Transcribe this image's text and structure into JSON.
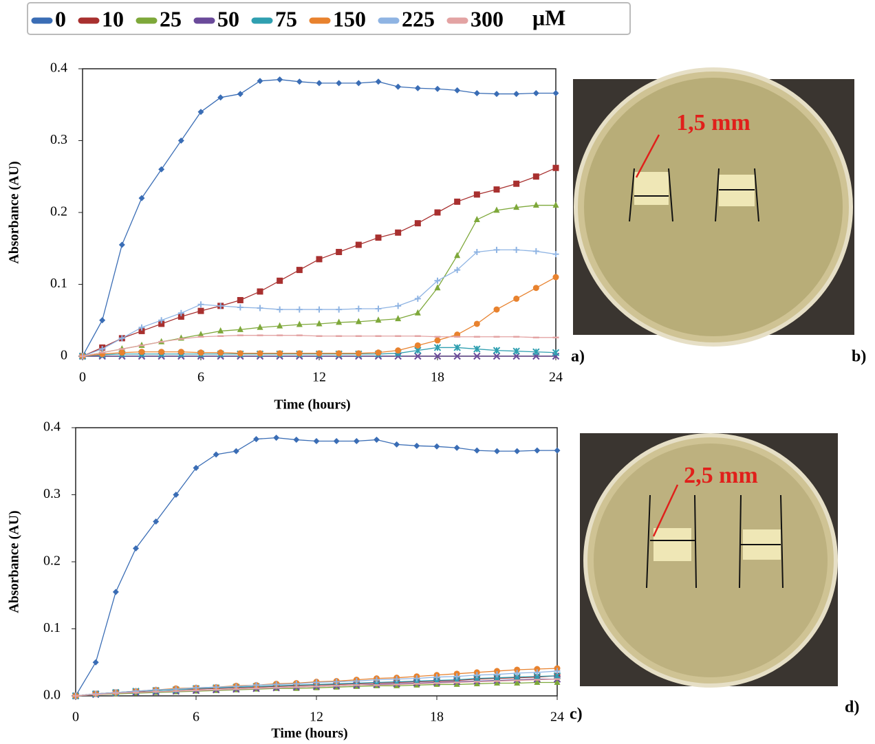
{
  "legend_unit": "μM",
  "panels": [
    "a)",
    "b)",
    "c)",
    "d)"
  ],
  "photos": [
    {
      "annotation": "1,5 mm"
    },
    {
      "annotation": "2,5 mm"
    }
  ],
  "chart_data": [
    {
      "type": "line",
      "x_label": "Time (hours)",
      "y_label": "Absorbance (AU)",
      "xlim": [
        0,
        24
      ],
      "ylim": [
        0,
        0.4
      ],
      "xticks": [
        0,
        6,
        12,
        18,
        24
      ],
      "yticks": [
        0,
        0.1,
        0.2,
        0.3,
        0.4
      ],
      "x": [
        0,
        1,
        2,
        3,
        4,
        5,
        6,
        7,
        8,
        9,
        10,
        11,
        12,
        13,
        14,
        15,
        16,
        17,
        18,
        19,
        20,
        21,
        22,
        23,
        24
      ],
      "series": [
        {
          "name": "0",
          "color": "#3a6db5",
          "marker": "diamond",
          "values": [
            0,
            0.05,
            0.155,
            0.22,
            0.26,
            0.3,
            0.34,
            0.36,
            0.365,
            0.383,
            0.385,
            0.382,
            0.38,
            0.38,
            0.38,
            0.382,
            0.375,
            0.373,
            0.372,
            0.37,
            0.366,
            0.365,
            0.365,
            0.366,
            0.366
          ]
        },
        {
          "name": "10",
          "color": "#a8302f",
          "marker": "square",
          "values": [
            0,
            0.012,
            0.025,
            0.035,
            0.045,
            0.055,
            0.063,
            0.07,
            0.078,
            0.09,
            0.105,
            0.12,
            0.135,
            0.145,
            0.155,
            0.165,
            0.172,
            0.185,
            0.2,
            0.215,
            0.225,
            0.232,
            0.24,
            0.25,
            0.262
          ]
        },
        {
          "name": "25",
          "color": "#7ea83a",
          "marker": "triangle",
          "values": [
            0,
            0.005,
            0.01,
            0.015,
            0.02,
            0.025,
            0.03,
            0.035,
            0.037,
            0.04,
            0.042,
            0.044,
            0.045,
            0.047,
            0.048,
            0.05,
            0.052,
            0.06,
            0.095,
            0.14,
            0.19,
            0.203,
            0.207,
            0.21,
            0.21
          ]
        },
        {
          "name": "50",
          "color": "#6a4a9a",
          "marker": "x",
          "values": [
            0,
            0,
            0,
            0,
            0,
            0,
            0,
            0,
            0,
            0,
            0,
            0,
            0,
            0,
            0,
            0,
            0,
            0,
            0,
            0,
            0,
            0,
            0,
            0,
            0
          ]
        },
        {
          "name": "75",
          "color": "#2f9fb0",
          "marker": "star",
          "values": [
            0,
            0.002,
            0.003,
            0.003,
            0.003,
            0.003,
            0.003,
            0.003,
            0.003,
            0.003,
            0.003,
            0.003,
            0.003,
            0.003,
            0.003,
            0.003,
            0.004,
            0.008,
            0.012,
            0.012,
            0.01,
            0.008,
            0.007,
            0.006,
            0.005
          ]
        },
        {
          "name": "150",
          "color": "#e8822e",
          "marker": "circle",
          "values": [
            0,
            0.003,
            0.005,
            0.006,
            0.006,
            0.006,
            0.005,
            0.005,
            0.004,
            0.004,
            0.004,
            0.004,
            0.004,
            0.004,
            0.004,
            0.005,
            0.008,
            0.015,
            0.022,
            0.03,
            0.045,
            0.065,
            0.08,
            0.095,
            0.11
          ]
        },
        {
          "name": "225",
          "color": "#8fb4e3",
          "marker": "plus",
          "values": [
            0,
            0.01,
            0.025,
            0.04,
            0.05,
            0.06,
            0.072,
            0.07,
            0.068,
            0.067,
            0.065,
            0.065,
            0.065,
            0.065,
            0.066,
            0.066,
            0.07,
            0.08,
            0.105,
            0.12,
            0.145,
            0.148,
            0.148,
            0.146,
            0.142
          ]
        },
        {
          "name": "300",
          "color": "#e3a3a3",
          "marker": "dash",
          "values": [
            0,
            0.005,
            0.01,
            0.015,
            0.02,
            0.024,
            0.027,
            0.028,
            0.029,
            0.029,
            0.029,
            0.029,
            0.028,
            0.028,
            0.028,
            0.028,
            0.028,
            0.028,
            0.027,
            0.027,
            0.027,
            0.027,
            0.027,
            0.026,
            0.026
          ]
        }
      ]
    },
    {
      "type": "line",
      "x_label": "Time (hours)",
      "y_label": "Absorbance (AU)",
      "xlim": [
        0,
        24
      ],
      "ylim": [
        0,
        0.4
      ],
      "xticks": [
        0,
        6,
        12,
        18,
        24
      ],
      "yticks": [
        {
          "value": 0,
          "label": "0.0"
        },
        0.1,
        0.2,
        0.3,
        0.4
      ],
      "x": [
        0,
        1,
        2,
        3,
        4,
        5,
        6,
        7,
        8,
        9,
        10,
        11,
        12,
        13,
        14,
        15,
        16,
        17,
        18,
        19,
        20,
        21,
        22,
        23,
        24
      ],
      "series": [
        {
          "name": "0",
          "color": "#3a6db5",
          "marker": "diamond",
          "values": [
            0,
            0.05,
            0.155,
            0.22,
            0.26,
            0.3,
            0.34,
            0.36,
            0.365,
            0.383,
            0.385,
            0.382,
            0.38,
            0.38,
            0.38,
            0.382,
            0.375,
            0.373,
            0.372,
            0.37,
            0.366,
            0.365,
            0.365,
            0.366,
            0.366
          ]
        },
        {
          "name": "10",
          "color": "#a8302f",
          "marker": "square",
          "values": [
            0,
            0.003,
            0.005,
            0.006,
            0.008,
            0.009,
            0.01,
            0.011,
            0.012,
            0.013,
            0.014,
            0.015,
            0.016,
            0.017,
            0.018,
            0.019,
            0.02,
            0.021,
            0.022,
            0.023,
            0.025,
            0.026,
            0.027,
            0.028,
            0.03
          ]
        },
        {
          "name": "25",
          "color": "#7ea83a",
          "marker": "triangle",
          "values": [
            0,
            0.002,
            0.003,
            0.004,
            0.005,
            0.006,
            0.007,
            0.008,
            0.009,
            0.01,
            0.011,
            0.011,
            0.012,
            0.013,
            0.014,
            0.015,
            0.015,
            0.016,
            0.017,
            0.017,
            0.018,
            0.019,
            0.019,
            0.02,
            0.02
          ]
        },
        {
          "name": "50",
          "color": "#6a4a9a",
          "marker": "x",
          "values": [
            0,
            0.002,
            0.004,
            0.005,
            0.006,
            0.007,
            0.008,
            0.009,
            0.01,
            0.011,
            0.012,
            0.013,
            0.014,
            0.015,
            0.016,
            0.017,
            0.018,
            0.019,
            0.02,
            0.021,
            0.022,
            0.023,
            0.024,
            0.025,
            0.025
          ]
        },
        {
          "name": "75",
          "color": "#2f9fb0",
          "marker": "star",
          "values": [
            0,
            0.003,
            0.005,
            0.007,
            0.008,
            0.009,
            0.011,
            0.012,
            0.013,
            0.014,
            0.015,
            0.016,
            0.017,
            0.018,
            0.019,
            0.02,
            0.021,
            0.022,
            0.023,
            0.024,
            0.026,
            0.027,
            0.028,
            0.029,
            0.03
          ]
        },
        {
          "name": "150",
          "color": "#e8822e",
          "marker": "circle",
          "values": [
            0,
            0.003,
            0.005,
            0.007,
            0.009,
            0.011,
            0.012,
            0.013,
            0.015,
            0.016,
            0.018,
            0.019,
            0.021,
            0.022,
            0.024,
            0.026,
            0.027,
            0.029,
            0.031,
            0.033,
            0.035,
            0.037,
            0.039,
            0.04,
            0.041
          ]
        },
        {
          "name": "225",
          "color": "#8fb4e3",
          "marker": "plus",
          "values": [
            0,
            0.003,
            0.005,
            0.007,
            0.009,
            0.01,
            0.012,
            0.013,
            0.014,
            0.016,
            0.017,
            0.018,
            0.02,
            0.021,
            0.022,
            0.024,
            0.025,
            0.026,
            0.028,
            0.029,
            0.031,
            0.032,
            0.034,
            0.035,
            0.037
          ]
        },
        {
          "name": "300",
          "color": "#e3a3a3",
          "marker": "dash",
          "values": [
            0,
            0.002,
            0.004,
            0.005,
            0.006,
            0.007,
            0.008,
            0.009,
            0.01,
            0.011,
            0.012,
            0.013,
            0.014,
            0.015,
            0.016,
            0.016,
            0.017,
            0.018,
            0.019,
            0.02,
            0.021,
            0.022,
            0.023,
            0.024,
            0.025
          ]
        }
      ]
    }
  ]
}
